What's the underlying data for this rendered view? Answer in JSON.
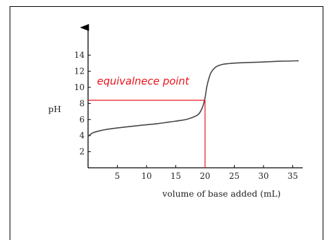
{
  "chart_data": {
    "type": "line",
    "title": "",
    "xlabel": "volume of base added (mL)",
    "ylabel": "pH",
    "xlim": [
      0,
      40
    ],
    "ylim": [
      0,
      14.5
    ],
    "x_ticks": [
      5,
      10,
      15,
      20,
      25,
      30,
      35
    ],
    "y_ticks": [
      2,
      4,
      6,
      8,
      10,
      12,
      14
    ],
    "grid": false,
    "legend": "none",
    "series": [
      {
        "color": "#444444",
        "x": [
          0,
          0.5,
          1,
          2,
          3,
          5,
          8,
          10,
          12,
          14,
          16,
          17,
          18,
          18.8,
          19.3,
          19.7,
          20,
          20.2,
          20.4,
          20.7,
          21,
          21.5,
          22,
          23,
          24,
          26,
          28,
          30,
          33,
          36
        ],
        "y": [
          3.9,
          4.2,
          4.4,
          4.6,
          4.75,
          4.95,
          5.2,
          5.35,
          5.5,
          5.7,
          5.9,
          6.05,
          6.3,
          6.6,
          7.1,
          7.8,
          8.7,
          9.6,
          10.4,
          11.2,
          11.8,
          12.3,
          12.6,
          12.85,
          12.95,
          13.05,
          13.1,
          13.15,
          13.25,
          13.3
        ]
      }
    ],
    "annotations": [
      {
        "text": "equivalnece point",
        "x": 20,
        "y": 8.4,
        "color": "#e8121b"
      }
    ]
  }
}
